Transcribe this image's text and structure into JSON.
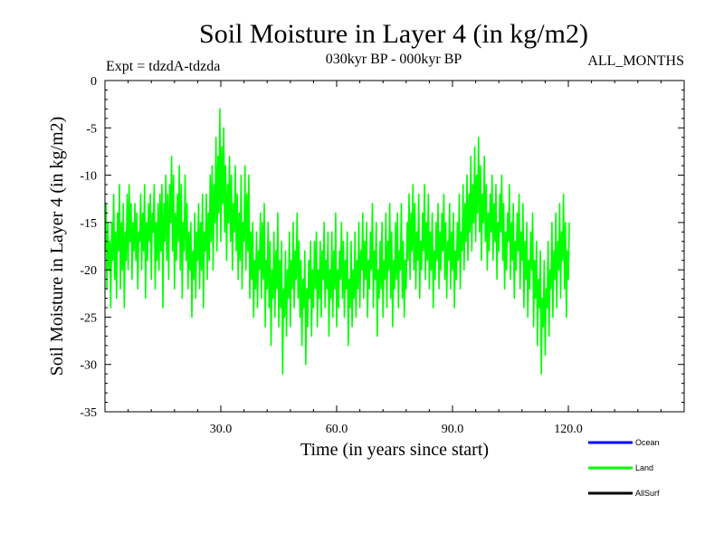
{
  "chart_data": {
    "type": "line",
    "title": "Soil Moisture in Layer 4 (in kg/m2)",
    "subtitle_left": "Expt = tdzdA-tdzda",
    "subtitle_center": "030kyr BP - 000kyr BP",
    "subtitle_right": "ALL_MONTHS",
    "xlabel": "Time (in years since start)",
    "ylabel": "Soil Moisture in Layer 4 (in kg/m2)",
    "xlim": [
      0,
      150
    ],
    "ylim": [
      -35,
      0
    ],
    "x_ticks": [
      30,
      60,
      90,
      120
    ],
    "x_tick_labels": [
      "30.0",
      "60.0",
      "90.0",
      "120.0"
    ],
    "y_ticks": [
      0,
      -5,
      -10,
      -15,
      -20,
      -25,
      -30,
      -35
    ],
    "y_tick_labels": [
      "0",
      "-5",
      "-10",
      "-15",
      "-20",
      "-25",
      "-30",
      "-35"
    ],
    "legend": [
      {
        "name": "Ocean",
        "color": "#0000ff"
      },
      {
        "name": "Land",
        "color": "#00ff00"
      },
      {
        "name": "AllSurf",
        "color": "#000000"
      }
    ],
    "series": [
      {
        "name": "Land",
        "color": "#00ff00",
        "x_start": 0,
        "x_step": 0.25,
        "values": [
          -18,
          -13,
          -22,
          -15,
          -20,
          -17,
          -24,
          -15,
          -19,
          -12,
          -21,
          -16,
          -23,
          -14,
          -18,
          -11,
          -22,
          -15,
          -20,
          -13,
          -24,
          -16,
          -19,
          -12,
          -20,
          -11,
          -17,
          -13,
          -21,
          -15,
          -18,
          -13,
          -19,
          -14,
          -22,
          -16,
          -17,
          -12,
          -20,
          -14,
          -18,
          -11,
          -23,
          -15,
          -19,
          -13,
          -17,
          -12,
          -21,
          -14,
          -16,
          -11,
          -22,
          -15,
          -19,
          -13,
          -20,
          -12,
          -18,
          -11,
          -24,
          -13,
          -17,
          -10,
          -19,
          -12,
          -21,
          -11,
          -15,
          -8,
          -18,
          -10,
          -22,
          -14,
          -19,
          -12,
          -17,
          -9,
          -20,
          -11,
          -23,
          -15,
          -18,
          -10,
          -19,
          -13,
          -22,
          -16,
          -20,
          -15,
          -25,
          -18,
          -21,
          -14,
          -23,
          -16,
          -19,
          -13,
          -22,
          -15,
          -20,
          -12,
          -24,
          -16,
          -18,
          -12,
          -21,
          -14,
          -19,
          -10,
          -17,
          -9,
          -20,
          -11,
          -15,
          -6,
          -18,
          -8,
          -14,
          -3,
          -17,
          -7,
          -13,
          -5,
          -16,
          -9,
          -19,
          -11,
          -15,
          -8,
          -17,
          -10,
          -20,
          -13,
          -16,
          -9,
          -18,
          -12,
          -21,
          -14,
          -19,
          -10,
          -22,
          -15,
          -17,
          -9,
          -20,
          -12,
          -18,
          -10,
          -23,
          -16,
          -21,
          -15,
          -25,
          -19,
          -22,
          -16,
          -24,
          -18,
          -20,
          -14,
          -23,
          -15,
          -21,
          -13,
          -26,
          -19,
          -22,
          -15,
          -24,
          -17,
          -28,
          -20,
          -23,
          -16,
          -25,
          -18,
          -22,
          -14,
          -26,
          -19,
          -24,
          -17,
          -31,
          -22,
          -25,
          -18,
          -27,
          -20,
          -23,
          -16,
          -26,
          -19,
          -22,
          -15,
          -24,
          -18,
          -21,
          -14,
          -23,
          -17,
          -25,
          -19,
          -28,
          -21,
          -24,
          -18,
          -30,
          -22,
          -26,
          -19,
          -23,
          -17,
          -27,
          -20,
          -24,
          -17,
          -22,
          -16,
          -26,
          -20,
          -23,
          -17,
          -25,
          -18,
          -21,
          -15,
          -24,
          -19,
          -22,
          -16,
          -27,
          -20,
          -23,
          -16,
          -25,
          -18,
          -22,
          -14,
          -26,
          -20,
          -24,
          -18,
          -21,
          -15,
          -23,
          -17,
          -25,
          -19,
          -22,
          -16,
          -28,
          -21,
          -24,
          -17,
          -26,
          -20,
          -23,
          -16,
          -25,
          -19,
          -22,
          -15,
          -24,
          -18,
          -20,
          -14,
          -23,
          -17,
          -21,
          -15,
          -25,
          -19,
          -22,
          -16,
          -20,
          -13,
          -24,
          -18,
          -21,
          -15,
          -27,
          -20,
          -23,
          -17,
          -22,
          -15,
          -25,
          -19,
          -21,
          -14,
          -24,
          -17,
          -20,
          -13,
          -23,
          -16,
          -26,
          -19,
          -22,
          -15,
          -21,
          -14,
          -24,
          -18,
          -20,
          -13,
          -23,
          -17,
          -25,
          -19,
          -22,
          -15,
          -19,
          -12,
          -21,
          -14,
          -18,
          -11,
          -20,
          -13,
          -22,
          -16,
          -19,
          -12,
          -23,
          -17,
          -20,
          -14,
          -18,
          -11,
          -21,
          -15,
          -19,
          -12,
          -22,
          -16,
          -20,
          -14,
          -24,
          -18,
          -21,
          -15,
          -19,
          -13,
          -22,
          -16,
          -20,
          -14,
          -18,
          -12,
          -21,
          -15,
          -23,
          -17,
          -19,
          -13,
          -22,
          -16,
          -20,
          -14,
          -24,
          -18,
          -21,
          -15,
          -19,
          -12,
          -22,
          -16,
          -18,
          -11,
          -20,
          -13,
          -17,
          -10,
          -19,
          -12,
          -16,
          -8,
          -18,
          -11,
          -15,
          -7,
          -17,
          -10,
          -14,
          -6,
          -16,
          -9,
          -19,
          -12,
          -15,
          -8,
          -17,
          -11,
          -20,
          -14,
          -18,
          -12,
          -16,
          -10,
          -19,
          -13,
          -17,
          -11,
          -21,
          -15,
          -18,
          -12,
          -16,
          -10,
          -19,
          -13,
          -22,
          -16,
          -20,
          -14,
          -17,
          -11,
          -21,
          -15,
          -19,
          -13,
          -23,
          -17,
          -20,
          -14,
          -18,
          -12,
          -22,
          -16,
          -19,
          -13,
          -24,
          -17,
          -21,
          -15,
          -25,
          -19,
          -22,
          -16,
          -20,
          -14,
          -26,
          -19,
          -23,
          -17,
          -28,
          -21,
          -24,
          -18,
          -31,
          -23,
          -26,
          -19,
          -29,
          -22,
          -24,
          -17,
          -27,
          -20,
          -22,
          -15,
          -25,
          -18,
          -21,
          -14,
          -24,
          -17,
          -20,
          -13,
          -23,
          -16,
          -19,
          -12,
          -22,
          -15,
          -25,
          -18,
          -21,
          -15
        ]
      }
    ]
  }
}
